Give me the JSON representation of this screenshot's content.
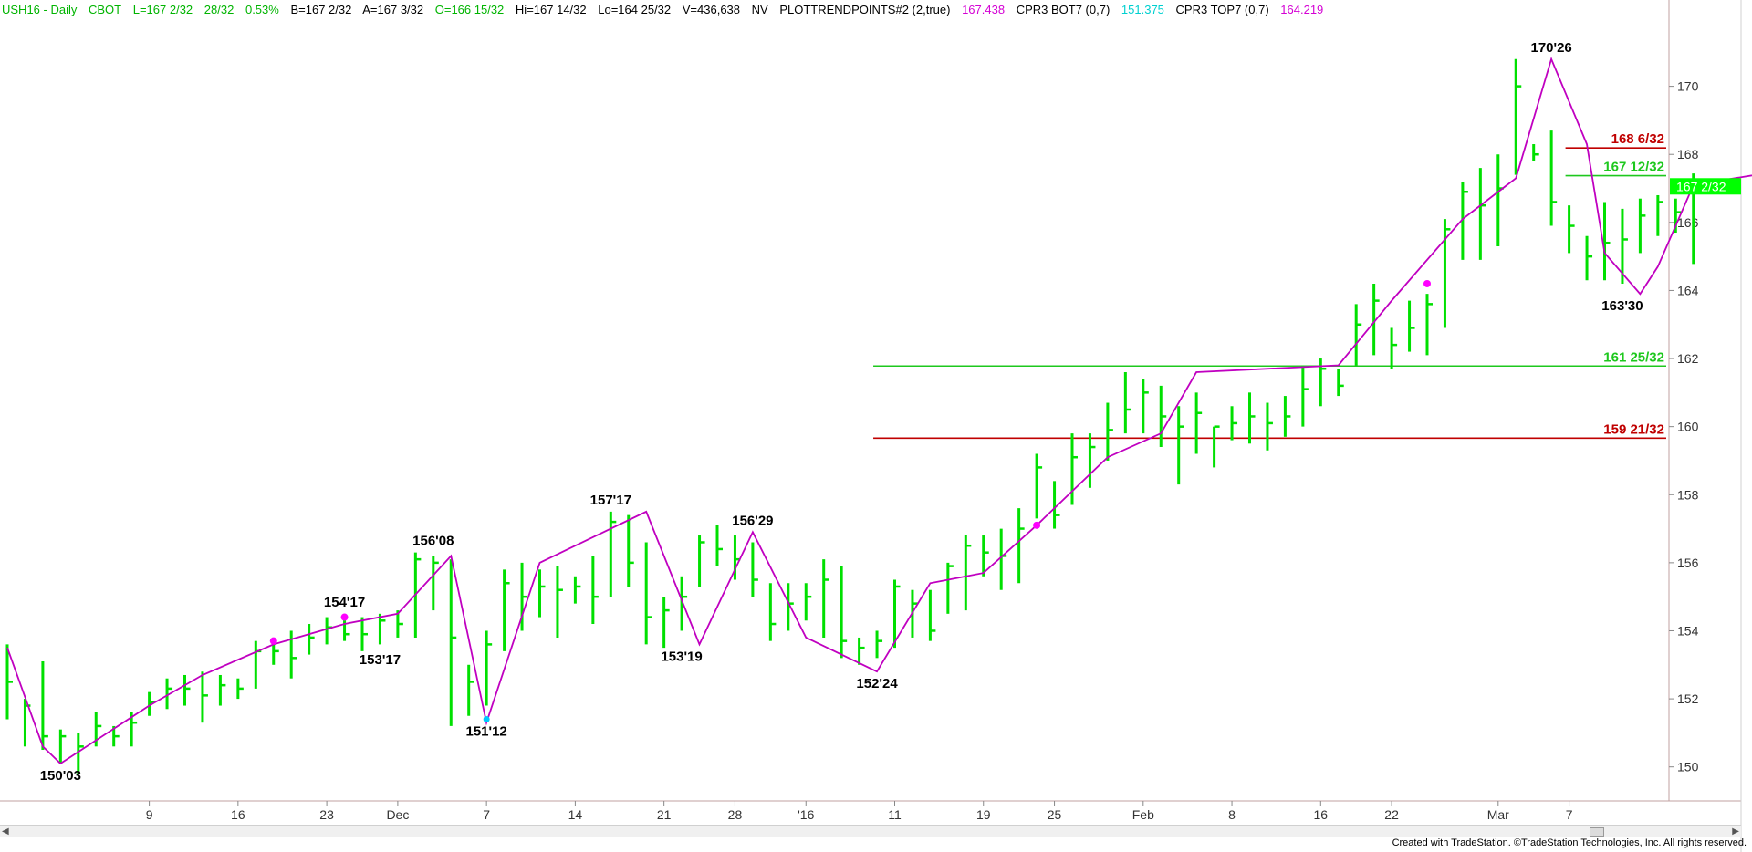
{
  "header": {
    "symbol": "USH16 - Daily",
    "exchange": "CBOT",
    "last": "L=167 2/32",
    "change": "28/32",
    "pct": "0.53%",
    "bid": "B=167 2/32",
    "ask": "A=167 3/32",
    "open": "O=166 15/32",
    "high": "Hi=167 14/32",
    "low": "Lo=164 25/32",
    "volume": "V=436,638",
    "nv": "NV",
    "study1_name": "PLOTTRENDPOINTS#2 (2,true)",
    "study1_value": "167.438",
    "study2_name": "CPR3 BOT7 (0,7)",
    "study2_value": "151.375",
    "study3_name": "CPR3 TOP7 (0,7)",
    "study3_value": "164.219"
  },
  "footer": {
    "credit": "Created with TradeStation. ©TradeStation Technologies, Inc. All rights reserved."
  },
  "chart_data": {
    "type": "bar",
    "subtype": "ohlc",
    "ylim": [
      149,
      172
    ],
    "yticks": [
      150,
      152,
      154,
      156,
      158,
      160,
      162,
      164,
      166,
      168,
      170
    ],
    "xtick_labels": [
      {
        "label": "9",
        "day": 8
      },
      {
        "label": "16",
        "day": 13
      },
      {
        "label": "23",
        "day": 18
      },
      {
        "label": "Dec",
        "day": 22
      },
      {
        "label": "7",
        "day": 27
      },
      {
        "label": "14",
        "day": 32
      },
      {
        "label": "21",
        "day": 37
      },
      {
        "label": "28",
        "day": 41
      },
      {
        "label": "'16",
        "day": 45
      },
      {
        "label": "11",
        "day": 50
      },
      {
        "label": "19",
        "day": 55
      },
      {
        "label": "25",
        "day": 59
      },
      {
        "label": "Feb",
        "day": 64
      },
      {
        "label": "8",
        "day": 69
      },
      {
        "label": "16",
        "day": 74
      },
      {
        "label": "22",
        "day": 78
      },
      {
        "label": "Mar",
        "day": 84
      },
      {
        "label": "7",
        "day": 88
      }
    ],
    "bars": [
      [
        153.6,
        151.4,
        152.5
      ],
      [
        152.0,
        150.6,
        151.8
      ],
      [
        153.1,
        150.5,
        150.9
      ],
      [
        151.1,
        150.1,
        150.9
      ],
      [
        151.0,
        149.8,
        150.6
      ],
      [
        151.6,
        150.6,
        151.2
      ],
      [
        151.2,
        150.6,
        150.9
      ],
      [
        151.6,
        150.6,
        151.3
      ],
      [
        152.2,
        151.5,
        151.9
      ],
      [
        152.6,
        151.7,
        152.3
      ],
      [
        152.7,
        151.8,
        152.3
      ],
      [
        152.8,
        151.3,
        152.1
      ],
      [
        152.7,
        151.8,
        152.4
      ],
      [
        152.6,
        152.0,
        152.3
      ],
      [
        153.7,
        152.3,
        153.4
      ],
      [
        153.8,
        153.0,
        153.4
      ],
      [
        154.0,
        152.6,
        153.2
      ],
      [
        154.2,
        153.3,
        153.8
      ],
      [
        154.4,
        153.6,
        154.1
      ],
      [
        154.4,
        153.7,
        153.9
      ],
      [
        154.4,
        153.4,
        153.9
      ],
      [
        154.5,
        153.6,
        154.3
      ],
      [
        154.6,
        153.8,
        154.2
      ],
      [
        156.3,
        153.8,
        156.1
      ],
      [
        156.2,
        154.6,
        156.0
      ],
      [
        156.1,
        151.2,
        153.8
      ],
      [
        153.0,
        151.5,
        152.5
      ],
      [
        154.0,
        151.8,
        153.6
      ],
      [
        155.8,
        153.4,
        155.4
      ],
      [
        156.0,
        154.0,
        155.0
      ],
      [
        155.8,
        154.4,
        155.3
      ],
      [
        155.9,
        153.8,
        155.2
      ],
      [
        155.6,
        154.8,
        155.3
      ],
      [
        156.2,
        154.2,
        155.0
      ],
      [
        157.5,
        155.0,
        157.2
      ],
      [
        157.4,
        155.3,
        156.0
      ],
      [
        156.6,
        153.6,
        154.4
      ],
      [
        155.0,
        153.5,
        154.6
      ],
      [
        155.6,
        154.0,
        155.0
      ],
      [
        156.8,
        155.3,
        156.6
      ],
      [
        157.1,
        155.9,
        156.4
      ],
      [
        156.8,
        155.5,
        156.1
      ],
      [
        156.6,
        155.0,
        155.5
      ],
      [
        155.4,
        153.7,
        154.2
      ],
      [
        155.4,
        154.0,
        154.8
      ],
      [
        155.4,
        154.3,
        155.0
      ],
      [
        156.1,
        153.8,
        155.5
      ],
      [
        155.9,
        153.2,
        153.7
      ],
      [
        153.8,
        153.0,
        153.5
      ],
      [
        154.0,
        153.2,
        153.7
      ],
      [
        155.5,
        153.5,
        155.3
      ],
      [
        155.2,
        153.8,
        154.8
      ],
      [
        155.2,
        153.7,
        154.0
      ],
      [
        156.0,
        154.5,
        155.9
      ],
      [
        156.8,
        154.6,
        156.5
      ],
      [
        156.8,
        155.6,
        156.3
      ],
      [
        157.0,
        155.2,
        156.2
      ],
      [
        157.6,
        155.4,
        157.0
      ],
      [
        159.2,
        157.3,
        158.8
      ],
      [
        158.4,
        157.0,
        157.4
      ],
      [
        159.8,
        157.7,
        159.1
      ],
      [
        159.8,
        158.2,
        159.4
      ],
      [
        160.7,
        159.0,
        159.9
      ],
      [
        161.6,
        159.8,
        160.5
      ],
      [
        161.4,
        159.8,
        161.0
      ],
      [
        161.2,
        159.4,
        160.3
      ],
      [
        160.6,
        158.3,
        160.0
      ],
      [
        161.0,
        159.2,
        160.4
      ],
      [
        160.0,
        158.8,
        160.0
      ],
      [
        160.6,
        159.6,
        160.1
      ],
      [
        161.0,
        159.5,
        160.3
      ],
      [
        160.7,
        159.3,
        160.1
      ],
      [
        160.9,
        159.7,
        160.3
      ],
      [
        161.8,
        160.0,
        161.1
      ],
      [
        162.0,
        160.6,
        161.7
      ],
      [
        161.7,
        160.9,
        161.2
      ],
      [
        163.6,
        161.8,
        163.0
      ],
      [
        164.2,
        162.1,
        163.7
      ],
      [
        162.9,
        161.7,
        162.4
      ],
      [
        163.7,
        162.2,
        162.9
      ],
      [
        163.9,
        162.1,
        163.6
      ],
      [
        166.1,
        162.9,
        165.8
      ],
      [
        167.2,
        164.9,
        166.9
      ],
      [
        167.6,
        164.9,
        166.5
      ],
      [
        168.0,
        165.3,
        167.0
      ],
      [
        170.8,
        167.4,
        170.0
      ],
      [
        168.3,
        167.8,
        168.0
      ],
      [
        168.7,
        165.9,
        166.6
      ],
      [
        166.5,
        165.1,
        165.9
      ],
      [
        165.6,
        164.3,
        165.0
      ],
      [
        166.6,
        164.3,
        165.4
      ],
      [
        166.4,
        164.2,
        165.5
      ],
      [
        166.7,
        165.1,
        166.2
      ],
      [
        166.8,
        165.6,
        166.6
      ],
      [
        166.7,
        165.7,
        166.3
      ],
      [
        167.44,
        164.78,
        167.06
      ]
    ],
    "trend_points": [
      [
        0,
        153.5
      ],
      [
        2,
        150.6
      ],
      [
        3,
        150.1
      ],
      [
        8,
        151.8
      ],
      [
        11,
        152.7
      ],
      [
        15,
        153.6
      ],
      [
        19,
        154.2
      ],
      [
        22,
        154.5
      ],
      [
        25,
        156.2
      ],
      [
        27,
        151.3
      ],
      [
        30,
        156.0
      ],
      [
        36,
        157.5
      ],
      [
        39,
        153.6
      ],
      [
        42,
        156.9
      ],
      [
        45,
        153.8
      ],
      [
        49,
        152.8
      ],
      [
        52,
        155.4
      ],
      [
        55,
        155.7
      ],
      [
        58,
        157.1
      ],
      [
        62,
        159.1
      ],
      [
        65,
        159.8
      ],
      [
        67,
        161.6
      ],
      [
        75,
        161.8
      ],
      [
        78,
        163.7
      ],
      [
        82,
        166.1
      ],
      [
        85,
        167.3
      ],
      [
        87,
        170.8
      ],
      [
        89,
        168.3
      ],
      [
        90,
        165.1
      ],
      [
        92,
        163.9
      ],
      [
        93,
        164.7
      ],
      [
        95,
        167.1
      ],
      [
        99,
        167.44
      ]
    ],
    "trend_dots": [
      [
        15,
        153.7
      ],
      [
        19,
        154.4
      ],
      [
        58,
        157.1
      ],
      [
        80,
        164.2
      ]
    ],
    "cyan_dots": [
      [
        27,
        151.4
      ]
    ],
    "levels": [
      {
        "value": 168.1875,
        "label": "168 6/32",
        "color": "#c00000",
        "from": 88
      },
      {
        "value": 167.375,
        "label": "167 12/32",
        "color": "#1ec81e",
        "from": 88
      },
      {
        "value": 161.78,
        "label": "161 25/32",
        "color": "#1ec81e",
        "from": 49
      },
      {
        "value": 159.66,
        "label": "159 21/32",
        "color": "#c00000",
        "from": 49
      }
    ],
    "annotations": [
      {
        "label": "150'03",
        "day": 3,
        "value": 150.1,
        "pos": "below"
      },
      {
        "label": "154'17",
        "day": 19,
        "value": 154.5,
        "pos": "above"
      },
      {
        "label": "153'17",
        "day": 21,
        "value": 153.5,
        "pos": "below"
      },
      {
        "label": "156'08",
        "day": 24,
        "value": 156.3,
        "pos": "above"
      },
      {
        "label": "151'12",
        "day": 27,
        "value": 151.4,
        "pos": "below"
      },
      {
        "label": "157'17",
        "day": 34,
        "value": 157.5,
        "pos": "above"
      },
      {
        "label": "153'19",
        "day": 38,
        "value": 153.6,
        "pos": "below"
      },
      {
        "label": "156'29",
        "day": 42,
        "value": 156.9,
        "pos": "above"
      },
      {
        "label": "152'24",
        "day": 49,
        "value": 152.8,
        "pos": "below"
      },
      {
        "label": "170'26",
        "day": 87,
        "value": 170.8,
        "pos": "above"
      },
      {
        "label": "163'30",
        "day": 91,
        "value": 163.9,
        "pos": "below"
      }
    ],
    "last_price_label": "167 2/32",
    "last_price_value": 167.06,
    "colors": {
      "bars": "#00e000",
      "trend": "#c000c0",
      "trend_dot": "#ff00ff",
      "cyan_dot": "#00c8ff",
      "last_price_bg": "#00ff00",
      "axis": "#c0a0a0"
    }
  }
}
